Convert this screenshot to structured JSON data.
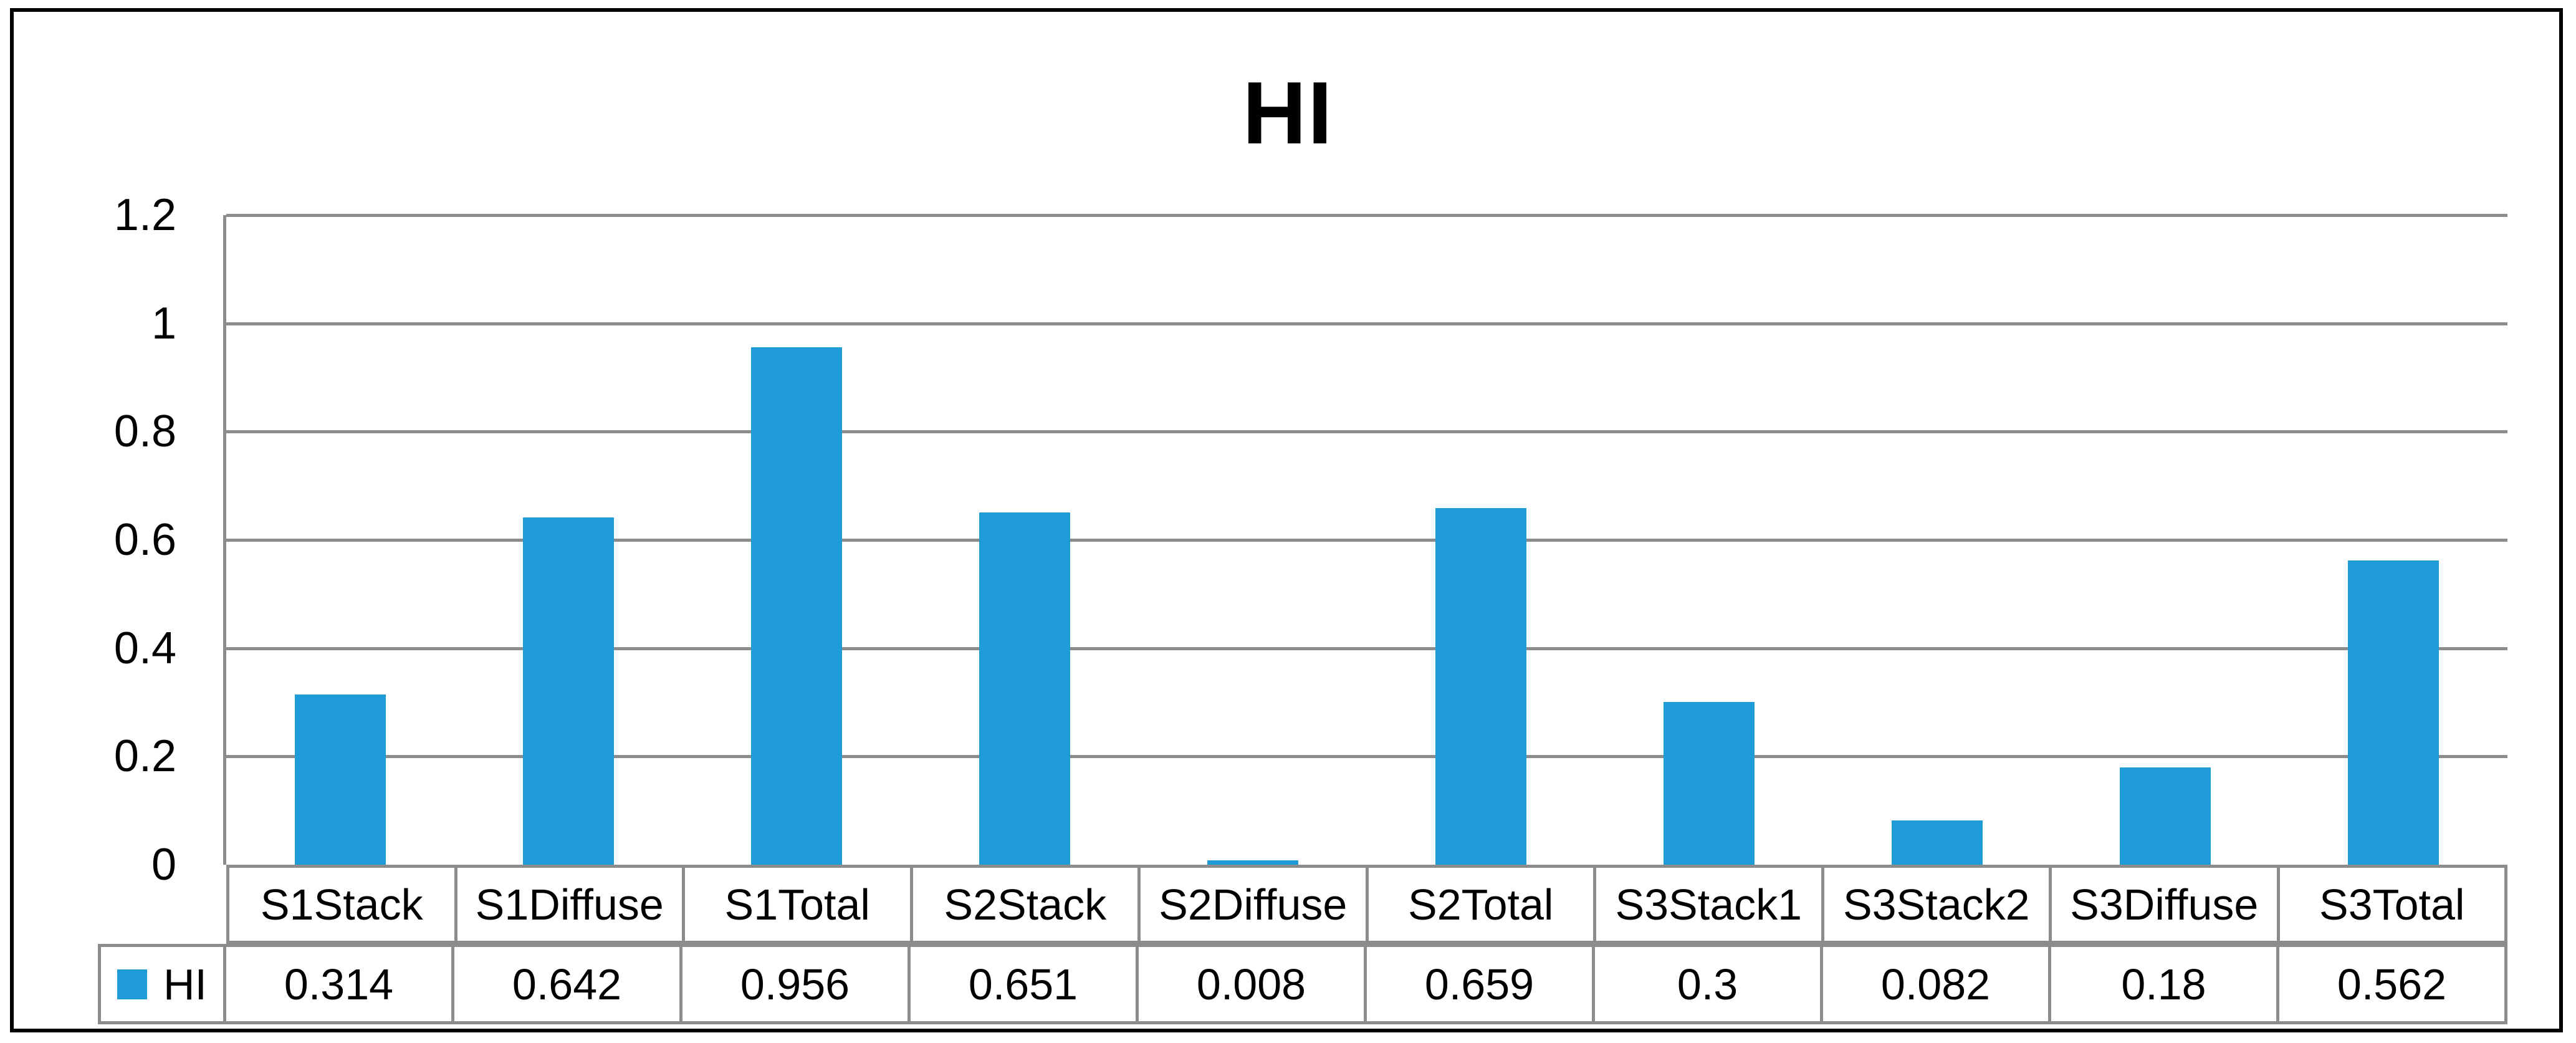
{
  "chart_data": {
    "type": "bar",
    "title": "HI",
    "categories": [
      "S1Stack",
      "S1Diffuse",
      "S1Total",
      "S2Stack",
      "S2Diffuse",
      "S2Total",
      "S3Stack1",
      "S3Stack2",
      "S3Diffuse",
      "S3Total"
    ],
    "series": [
      {
        "name": "HI",
        "values": [
          0.314,
          0.642,
          0.956,
          0.651,
          0.008,
          0.659,
          0.3,
          0.082,
          0.18,
          0.562
        ],
        "value_labels": [
          "0.314",
          "0.642",
          "0.956",
          "0.651",
          "0.008",
          "0.659",
          "0.3",
          "0.082",
          "0.18",
          "0.562"
        ]
      }
    ],
    "xlabel": "",
    "ylabel": "",
    "ylim": [
      0,
      1.2
    ],
    "yticks": [
      0,
      0.2,
      0.4,
      0.6,
      0.8,
      1,
      1.2
    ],
    "ytick_labels": [
      "0",
      "0.2",
      "0.4",
      "0.6",
      "0.8",
      "1",
      "1.2"
    ],
    "grid": true,
    "legend_position": "data-table-left",
    "data_table": true
  },
  "colors": {
    "bar": "#1F9CD8",
    "gridline": "#8C8C8C",
    "table_border": "#8C8C8C",
    "frame": "#000000",
    "background": "#FFFFFF",
    "text": "#000000"
  }
}
